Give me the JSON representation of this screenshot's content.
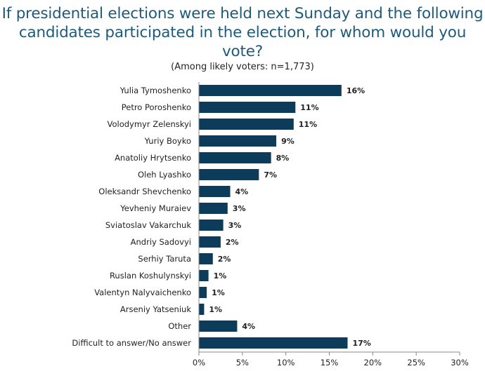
{
  "title_line1": "If presidential elections were held next Sunday and the following",
  "title_line2": "candidates participated in the election, for whom would you vote?",
  "subtitle": "(Among likely voters: n=1,773)",
  "chart_data": {
    "type": "bar",
    "orientation": "horizontal",
    "categories": [
      "Yulia Tymoshenko",
      "Petro Poroshenko",
      "Volodymyr Zelenskyi",
      "Yuriy Boyko",
      "Anatoliy Hrytsenko",
      "Oleh Lyashko",
      "Oleksandr Shevchenko",
      "Yevheniy Muraiev",
      "Sviatoslav Vakarchuk",
      "Andriy Sadovyi",
      "Serhiy Taruta",
      "Ruslan Koshulynskyi",
      "Valentyn Nalyvaichenko",
      "Arseniy Yatseniuk",
      "Other",
      "Difficult to answer/No answer"
    ],
    "values": [
      16.4,
      11.1,
      10.9,
      8.9,
      8.3,
      6.9,
      3.6,
      3.3,
      2.8,
      2.5,
      1.6,
      1.1,
      0.9,
      0.6,
      4.4,
      17.1
    ],
    "data_labels": [
      "16%",
      "11%",
      "11%",
      "9%",
      "8%",
      "7%",
      "4%",
      "3%",
      "3%",
      "2%",
      "2%",
      "1%",
      "1%",
      "1%",
      "4%",
      "17%"
    ],
    "xlim": [
      0,
      30
    ],
    "xticks": [
      "0%",
      "5%",
      "10%",
      "15%",
      "20%",
      "25%",
      "30%"
    ],
    "bar_color": "#0d3b5a",
    "title_color": "#1e5a7a",
    "grid": false,
    "legend": false
  }
}
